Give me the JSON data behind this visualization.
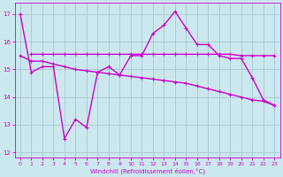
{
  "background_color": "#cce8ef",
  "grid_color": "#aacdd6",
  "line_color": "#cc00cc",
  "xlabel": "Windchill (Refroidissement éolien,°C)",
  "xlim": [
    -0.5,
    23.5
  ],
  "ylim": [
    11.8,
    17.4
  ],
  "yticks": [
    12,
    13,
    14,
    15,
    16,
    17
  ],
  "xticks": [
    0,
    1,
    2,
    3,
    4,
    5,
    6,
    7,
    8,
    9,
    10,
    11,
    12,
    13,
    14,
    15,
    16,
    17,
    18,
    19,
    20,
    21,
    22,
    23
  ],
  "line1_x": [
    0,
    1,
    2,
    3,
    4,
    5,
    6,
    7,
    8,
    9,
    10,
    11,
    12,
    13,
    14,
    15,
    16,
    17,
    18,
    19,
    20,
    21,
    22,
    23
  ],
  "line1_y": [
    17.0,
    14.9,
    15.1,
    15.1,
    12.5,
    13.2,
    12.9,
    14.9,
    15.1,
    14.8,
    15.5,
    15.5,
    16.3,
    16.6,
    17.1,
    16.5,
    15.9,
    15.9,
    15.5,
    15.4,
    15.4,
    14.7,
    13.9,
    13.7
  ],
  "line2_x": [
    1,
    2,
    3,
    4,
    5,
    6,
    7,
    8,
    9,
    10,
    11,
    12,
    13,
    14,
    15,
    16,
    17,
    18,
    19,
    20,
    21,
    22,
    23
  ],
  "line2_y": [
    15.55,
    15.55,
    15.55,
    15.55,
    15.55,
    15.55,
    15.55,
    15.55,
    15.55,
    15.55,
    15.55,
    15.55,
    15.55,
    15.55,
    15.55,
    15.55,
    15.55,
    15.55,
    15.55,
    15.5,
    15.5,
    15.5,
    15.5
  ],
  "line3_x": [
    0,
    1,
    2,
    3,
    4,
    5,
    6,
    7,
    8,
    9,
    10,
    11,
    12,
    13,
    14,
    15,
    16,
    17,
    18,
    19,
    20,
    21,
    22,
    23
  ],
  "line3_y": [
    15.5,
    15.3,
    15.3,
    15.2,
    15.1,
    15.0,
    14.95,
    14.9,
    14.85,
    14.8,
    14.75,
    14.7,
    14.65,
    14.6,
    14.55,
    14.5,
    14.4,
    14.3,
    14.2,
    14.1,
    14.0,
    13.9,
    13.85,
    13.7
  ],
  "ylabel_fontsize": 5,
  "tick_fontsize": 4.5,
  "linewidth": 1.0,
  "markersize": 3
}
